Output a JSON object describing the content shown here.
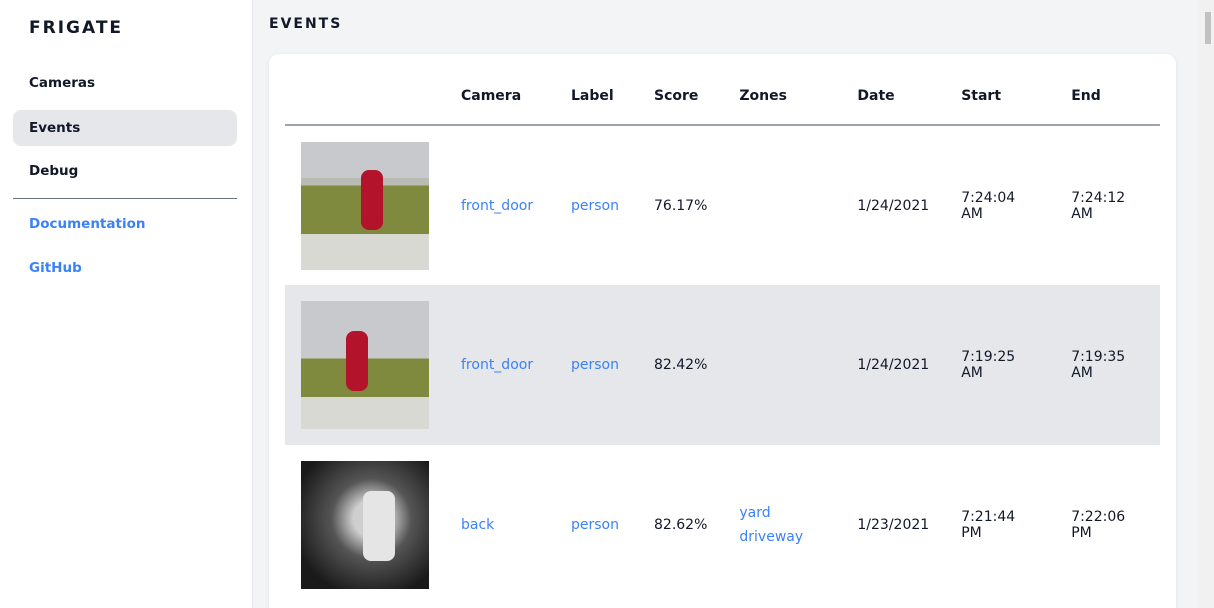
{
  "sidebar": {
    "brand": "FRIGATE",
    "items": [
      {
        "label": "Cameras"
      },
      {
        "label": "Events",
        "active": true
      },
      {
        "label": "Debug"
      }
    ],
    "links": [
      {
        "label": "Documentation"
      },
      {
        "label": "GitHub"
      }
    ]
  },
  "main": {
    "title": "EVENTS",
    "columns": [
      "",
      "Camera",
      "Label",
      "Score",
      "Zones",
      "Date",
      "Start",
      "End"
    ],
    "rows": [
      {
        "camera": "front_door",
        "label": "person",
        "score": "76.17%",
        "zones": [
          "",
          ""
        ],
        "date": "1/24/2021",
        "start": "7:24:04 AM",
        "end": "7:24:12 AM"
      },
      {
        "camera": "front_door",
        "label": "person",
        "score": "82.42%",
        "zones": [
          "",
          ""
        ],
        "date": "1/24/2021",
        "start": "7:19:25 AM",
        "end": "7:19:35 AM"
      },
      {
        "camera": "back",
        "label": "person",
        "score": "82.62%",
        "zones": [
          "yard",
          "driveway"
        ],
        "date": "1/23/2021",
        "start": "7:21:44 PM",
        "end": "7:22:06 PM"
      }
    ]
  },
  "colors": {
    "accent": "#3b82f6",
    "highlight": "#e5e7eb"
  }
}
